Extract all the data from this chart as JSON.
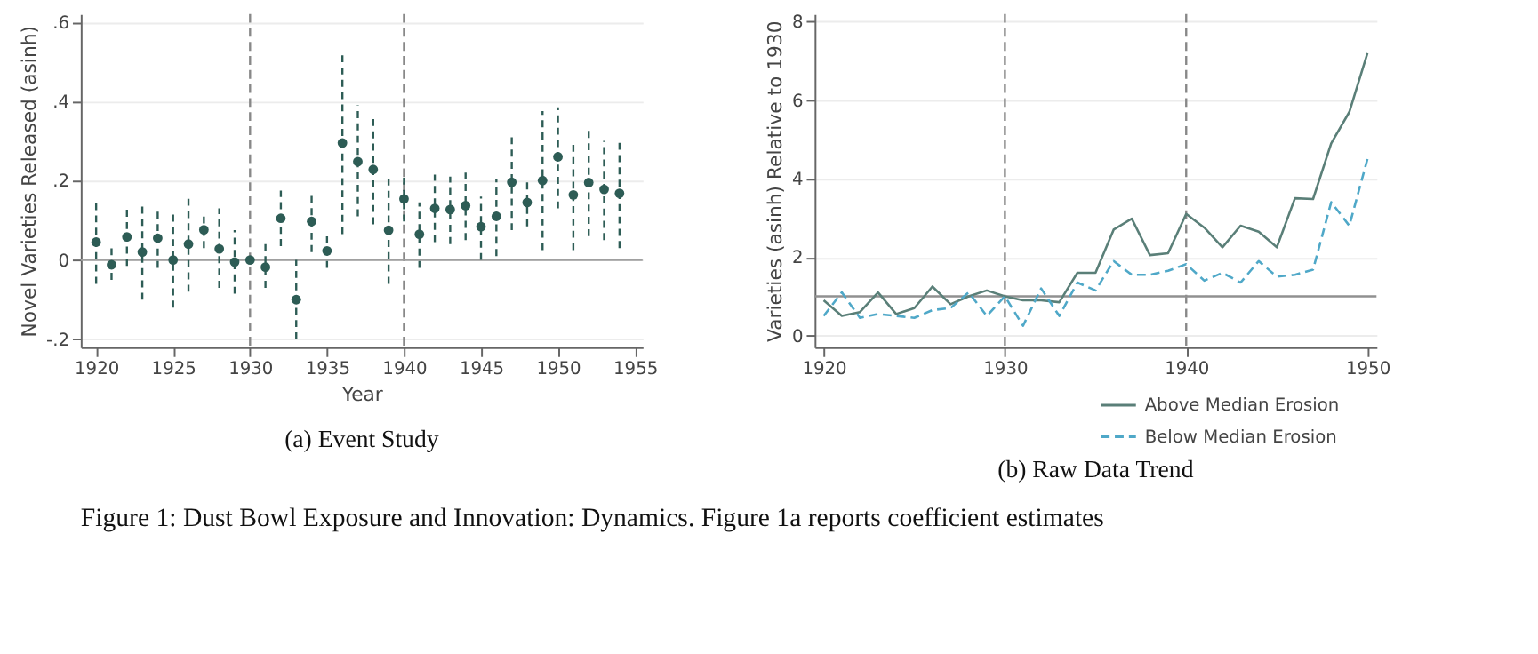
{
  "chart_data": [
    {
      "type": "scatter",
      "title": "(a) Event Study",
      "xlabel": "Year",
      "ylabel": "Novel Varieties Released (asinh)",
      "x": [
        1920,
        1921,
        1922,
        1923,
        1924,
        1925,
        1926,
        1927,
        1928,
        1929,
        1930,
        1931,
        1932,
        1933,
        1934,
        1935,
        1936,
        1937,
        1938,
        1939,
        1940,
        1941,
        1942,
        1943,
        1944,
        1945,
        1946,
        1947,
        1948,
        1949,
        1950,
        1951,
        1952,
        1953,
        1954
      ],
      "series": [
        {
          "color": "#2d5c55",
          "values": [
            0.045,
            -0.012,
            0.058,
            0.02,
            0.055,
            0.0,
            0.04,
            0.076,
            0.028,
            -0.005,
            0.0,
            -0.018,
            0.105,
            -0.1,
            0.097,
            0.023,
            0.295,
            0.248,
            0.228,
            0.075,
            0.154,
            0.065,
            0.13,
            0.127,
            0.137,
            0.084,
            0.11,
            0.196,
            0.145,
            0.2,
            0.26,
            0.164,
            0.195,
            0.178,
            0.168
          ],
          "errors": [
            [
              -0.06,
              0.15
            ],
            [
              -0.05,
              0.03
            ],
            [
              -0.015,
              0.13
            ],
            [
              -0.1,
              0.14
            ],
            [
              -0.02,
              0.13
            ],
            [
              -0.12,
              0.12
            ],
            [
              -0.08,
              0.165
            ],
            [
              0.03,
              0.12
            ],
            [
              -0.07,
              0.13
            ],
            [
              -0.085,
              0.075
            ],
            null,
            [
              -0.07,
              0.04
            ],
            [
              0.035,
              0.175
            ],
            [
              -0.2,
              0.0
            ],
            [
              0.02,
              0.17
            ],
            [
              -0.02,
              0.065
            ],
            [
              0.065,
              0.525
            ],
            [
              0.11,
              0.39
            ],
            [
              0.09,
              0.365
            ],
            [
              -0.06,
              0.21
            ],
            [
              0.097,
              0.21
            ],
            [
              -0.02,
              0.145
            ],
            [
              0.045,
              0.215
            ],
            [
              0.04,
              0.21
            ],
            [
              0.05,
              0.22
            ],
            [
              0.0,
              0.16
            ],
            [
              0.01,
              0.205
            ],
            [
              0.075,
              0.31
            ],
            [
              0.085,
              0.205
            ],
            [
              0.025,
              0.375
            ],
            [
              0.13,
              0.385
            ],
            [
              0.025,
              0.3
            ],
            [
              0.06,
              0.33
            ],
            [
              0.05,
              0.3
            ],
            [
              0.03,
              0.3
            ]
          ]
        }
      ],
      "xlim": [
        1919,
        1955.5
      ],
      "xticks": [
        1920,
        1925,
        1930,
        1935,
        1940,
        1945,
        1950,
        1955
      ],
      "ylim": [
        -0.22,
        0.62
      ],
      "yticks": [
        {
          "value": -0.2,
          "label": "-.2"
        },
        0,
        {
          "value": 0.2,
          "label": ".2"
        },
        {
          "value": 0.4,
          "label": ".4"
        },
        {
          "value": 0.6,
          "label": ".6"
        }
      ],
      "ref_lines": [
        {
          "axis": "x",
          "value": 1930,
          "line_style": "dashed",
          "color": "#888888"
        },
        {
          "axis": "x",
          "value": 1940,
          "line_style": "dashed",
          "color": "#888888"
        },
        {
          "axis": "y",
          "value": 0,
          "line_style": "solid",
          "color": "#a0a0a0"
        }
      ],
      "grid": "y",
      "marker": "circle",
      "legend": false,
      "annotations": [
        "Figure 1:  Dust Bowl Exposure and Innovation: Dynamics. Figure 1a reports coefficient estimates"
      ]
    },
    {
      "type": "line",
      "title": "(b) Raw Data Trend",
      "ylabel": "Varieties (asinh) Relative to 1930",
      "x": [
        1920,
        1921,
        1922,
        1923,
        1924,
        1925,
        1926,
        1927,
        1928,
        1929,
        1930,
        1931,
        1932,
        1933,
        1934,
        1935,
        1936,
        1937,
        1938,
        1939,
        1940,
        1941,
        1942,
        1943,
        1944,
        1945,
        1946,
        1947,
        1948,
        1949,
        1950
      ],
      "series": [
        {
          "name": "Above Median Erosion",
          "color": "#5a7f78",
          "line_style": "solid",
          "values": [
            0.9,
            0.5,
            0.6,
            1.1,
            0.55,
            0.7,
            1.25,
            0.8,
            1.0,
            1.15,
            1.0,
            0.9,
            0.9,
            0.85,
            1.6,
            1.6,
            2.7,
            2.98,
            2.05,
            2.1,
            3.1,
            2.75,
            2.25,
            2.8,
            2.65,
            2.25,
            3.5,
            3.48,
            4.9,
            5.7,
            7.2
          ]
        },
        {
          "name": "Below Median Erosion",
          "color": "#4fa8c8",
          "line_style": "dashed",
          "values": [
            0.5,
            1.1,
            0.45,
            0.55,
            0.5,
            0.45,
            0.65,
            0.7,
            1.1,
            0.5,
            1.0,
            0.25,
            1.2,
            0.5,
            1.35,
            1.15,
            1.9,
            1.55,
            1.55,
            1.65,
            1.82,
            1.4,
            1.6,
            1.35,
            1.9,
            1.5,
            1.55,
            1.68,
            3.4,
            2.8,
            4.5
          ]
        }
      ],
      "xlim": [
        1919.5,
        1950.5
      ],
      "xticks": [
        1920,
        1930,
        1940,
        1950
      ],
      "ylim": [
        -0.3,
        8.2
      ],
      "yticks": [
        0,
        2,
        4,
        6,
        8
      ],
      "ref_lines": [
        {
          "axis": "x",
          "value": 1930,
          "line_style": "dashed",
          "color": "#888888"
        },
        {
          "axis": "x",
          "value": 1940,
          "line_style": "dashed",
          "color": "#888888"
        },
        {
          "axis": "y",
          "value": 1,
          "line_style": "solid",
          "color": "#909090"
        }
      ],
      "grid": "y",
      "marker": "none",
      "legend": "bottom"
    }
  ]
}
